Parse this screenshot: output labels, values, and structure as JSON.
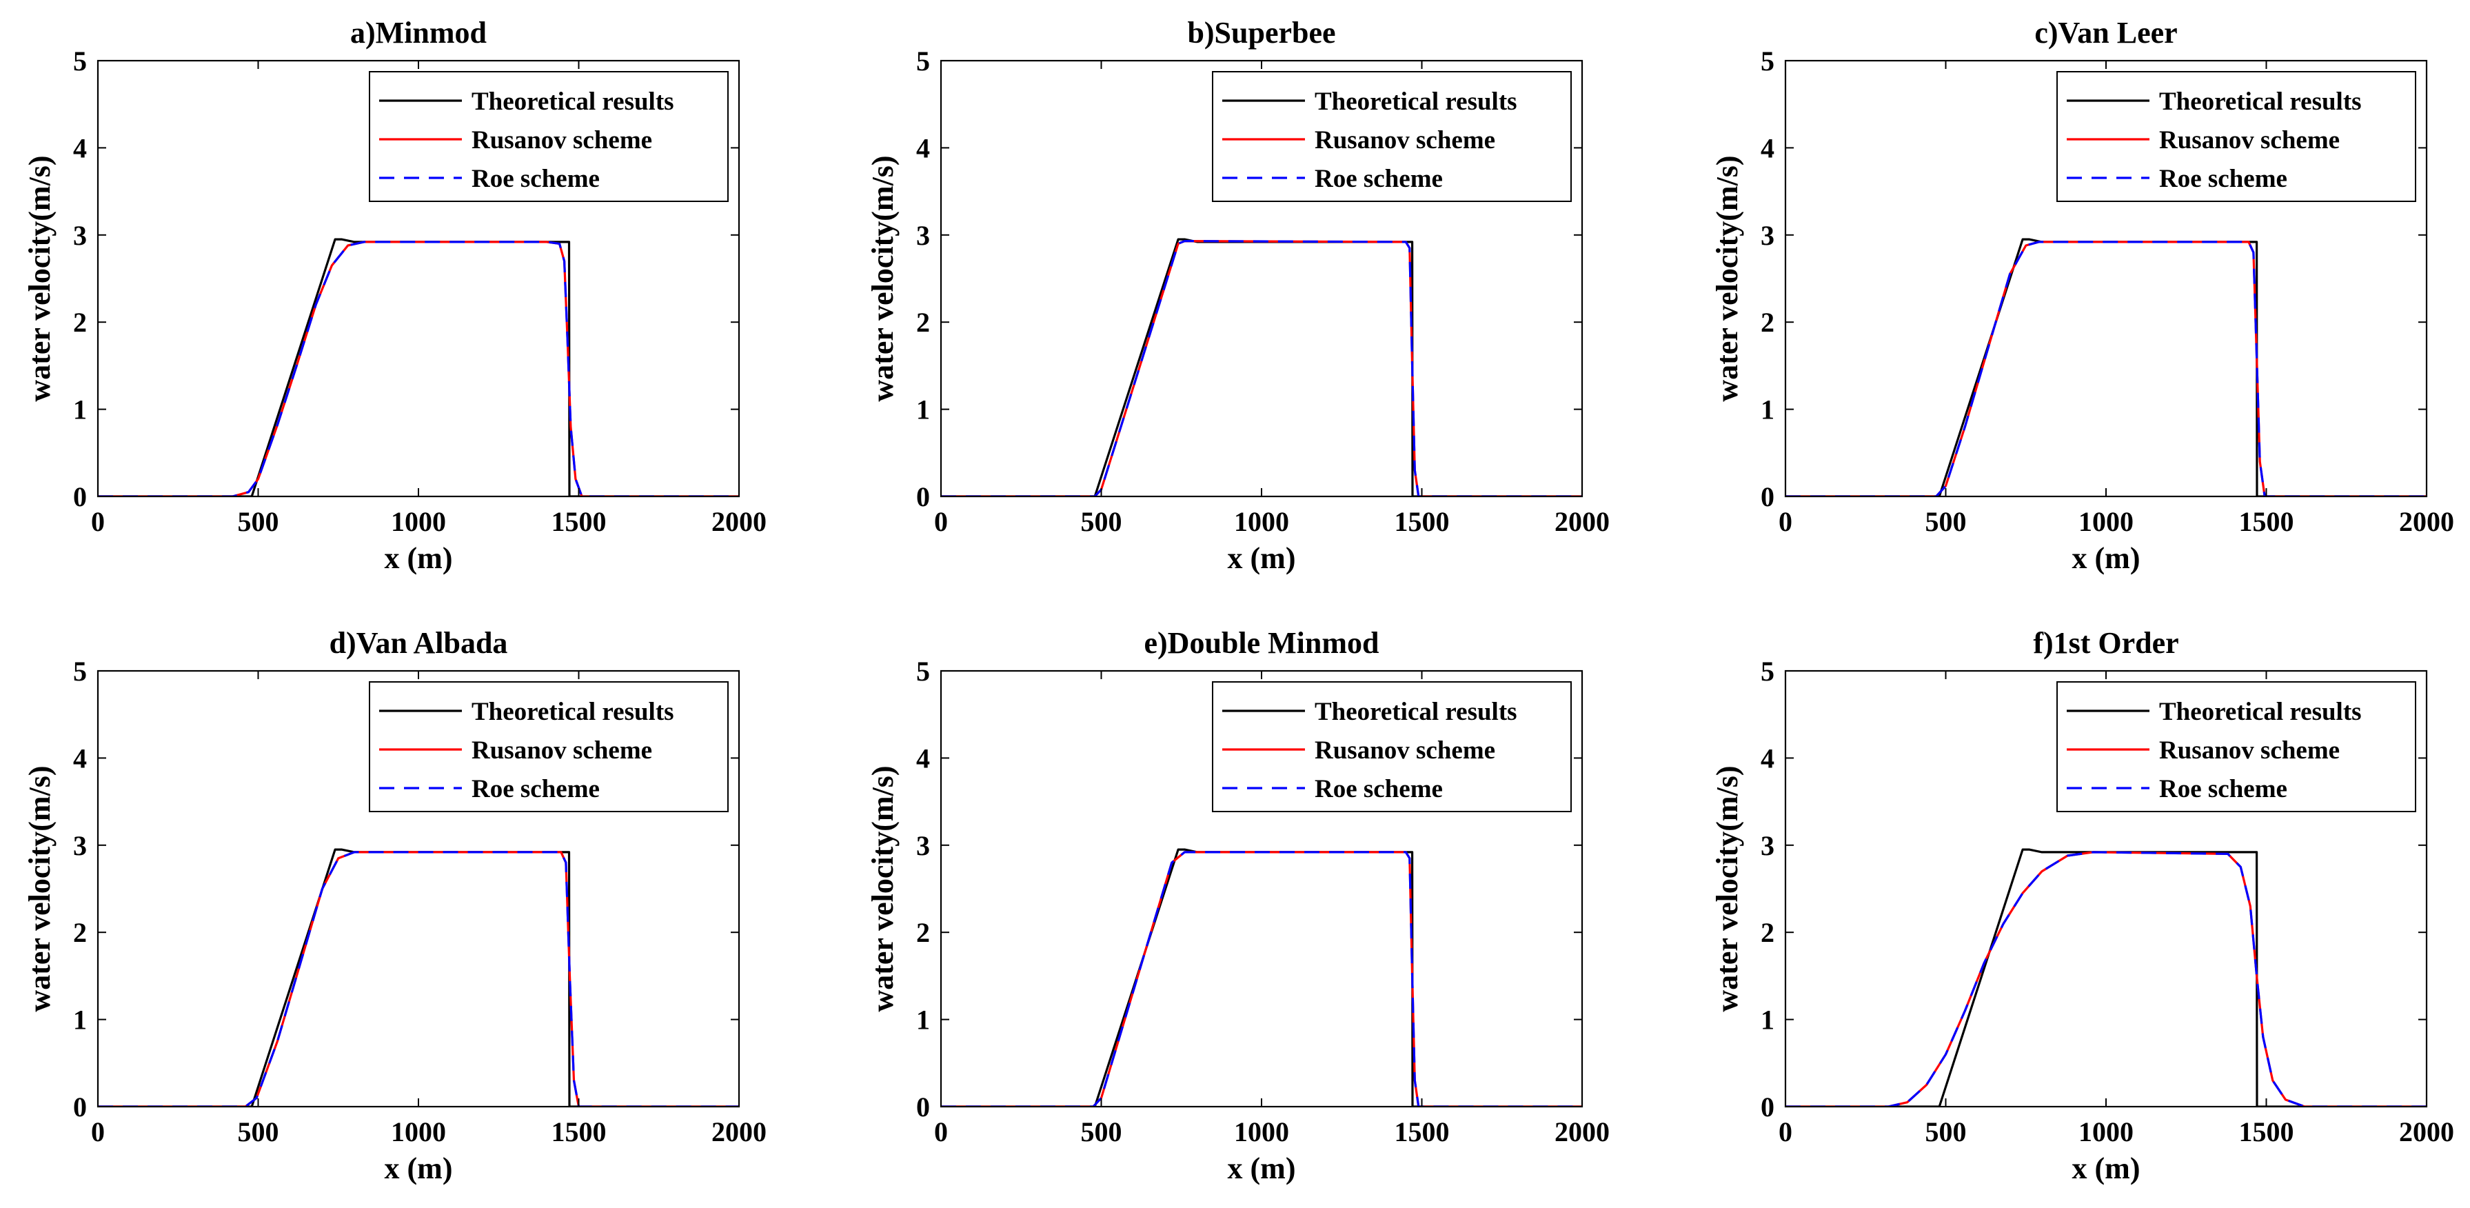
{
  "figure": {
    "panel_count": 6,
    "rows": 2,
    "cols": 3
  },
  "chart_data": [
    {
      "type": "line",
      "title": "a)Minmod",
      "xlabel": "x (m)",
      "ylabel": "water velocity(m/s)",
      "xlim": [
        0,
        2000
      ],
      "ylim": [
        0,
        5
      ],
      "xticks": [
        0,
        500,
        1000,
        1500,
        2000
      ],
      "yticks": [
        0,
        1,
        2,
        3,
        4,
        5
      ],
      "legend_position": "top-right",
      "series": [
        {
          "name": "Theoretical results",
          "color": "#000000",
          "dash": "solid",
          "x": [
            0,
            480,
            740,
            760,
            800,
            1470,
            1471,
            2000
          ],
          "y": [
            0,
            0,
            2.95,
            2.95,
            2.92,
            2.92,
            0,
            0
          ]
        },
        {
          "name": "Rusanov scheme",
          "color": "#ff0000",
          "dash": "solid",
          "x": [
            0,
            420,
            470,
            500,
            560,
            620,
            680,
            730,
            780,
            830,
            1400,
            1440,
            1455,
            1465,
            1475,
            1490,
            1510,
            2000
          ],
          "y": [
            0,
            0,
            0.05,
            0.2,
            0.82,
            1.5,
            2.2,
            2.65,
            2.88,
            2.92,
            2.92,
            2.9,
            2.7,
            1.8,
            0.8,
            0.2,
            0,
            0
          ]
        },
        {
          "name": "Roe scheme",
          "color": "#0000ff",
          "dash": "dashed",
          "x": [
            0,
            420,
            470,
            500,
            560,
            620,
            680,
            730,
            780,
            830,
            1400,
            1440,
            1455,
            1465,
            1475,
            1490,
            1510,
            2000
          ],
          "y": [
            0,
            0,
            0.05,
            0.2,
            0.82,
            1.5,
            2.2,
            2.65,
            2.88,
            2.92,
            2.92,
            2.9,
            2.7,
            1.8,
            0.8,
            0.2,
            0,
            0
          ]
        }
      ]
    },
    {
      "type": "line",
      "title": "b)Superbee",
      "xlabel": "x (m)",
      "ylabel": "water velocity(m/s)",
      "xlim": [
        0,
        2000
      ],
      "ylim": [
        0,
        5
      ],
      "xticks": [
        0,
        500,
        1000,
        1500,
        2000
      ],
      "yticks": [
        0,
        1,
        2,
        3,
        4,
        5
      ],
      "legend_position": "top-right",
      "series": [
        {
          "name": "Theoretical results",
          "color": "#000000",
          "dash": "solid",
          "x": [
            0,
            480,
            740,
            760,
            800,
            1470,
            1471,
            2000
          ],
          "y": [
            0,
            0,
            2.95,
            2.95,
            2.92,
            2.92,
            0,
            0
          ]
        },
        {
          "name": "Rusanov scheme",
          "color": "#ff0000",
          "dash": "solid",
          "x": [
            0,
            480,
            500,
            740,
            760,
            1450,
            1462,
            1470,
            1478,
            1490,
            2000
          ],
          "y": [
            0,
            0,
            0.08,
            2.9,
            2.93,
            2.92,
            2.85,
            1.5,
            0.3,
            0,
            0
          ]
        },
        {
          "name": "Roe scheme",
          "color": "#0000ff",
          "dash": "dashed",
          "x": [
            0,
            480,
            500,
            740,
            760,
            1450,
            1462,
            1470,
            1478,
            1490,
            2000
          ],
          "y": [
            0,
            0,
            0.08,
            2.9,
            2.93,
            2.92,
            2.85,
            1.5,
            0.3,
            0,
            0
          ]
        }
      ]
    },
    {
      "type": "line",
      "title": "c)Van Leer",
      "xlabel": "x (m)",
      "ylabel": "water velocity(m/s)",
      "xlim": [
        0,
        2000
      ],
      "ylim": [
        0,
        5
      ],
      "xticks": [
        0,
        500,
        1000,
        1500,
        2000
      ],
      "yticks": [
        0,
        1,
        2,
        3,
        4,
        5
      ],
      "legend_position": "top-right",
      "series": [
        {
          "name": "Theoretical results",
          "color": "#000000",
          "dash": "solid",
          "x": [
            0,
            480,
            740,
            760,
            800,
            1470,
            1471,
            2000
          ],
          "y": [
            0,
            0,
            2.95,
            2.95,
            2.92,
            2.92,
            0,
            0
          ]
        },
        {
          "name": "Rusanov scheme",
          "color": "#ff0000",
          "dash": "solid",
          "x": [
            0,
            470,
            500,
            560,
            700,
            750,
            790,
            1445,
            1460,
            1470,
            1480,
            1495,
            2000
          ],
          "y": [
            0,
            0,
            0.12,
            0.8,
            2.55,
            2.88,
            2.92,
            2.92,
            2.8,
            1.6,
            0.4,
            0,
            0
          ]
        },
        {
          "name": "Roe scheme",
          "color": "#0000ff",
          "dash": "dashed",
          "x": [
            0,
            470,
            500,
            560,
            700,
            750,
            790,
            1445,
            1460,
            1470,
            1480,
            1495,
            2000
          ],
          "y": [
            0,
            0,
            0.12,
            0.8,
            2.55,
            2.88,
            2.92,
            2.92,
            2.8,
            1.6,
            0.4,
            0,
            0
          ]
        }
      ]
    },
    {
      "type": "line",
      "title": "d)Van Albada",
      "xlabel": "x (m)",
      "ylabel": "water velocity(m/s)",
      "xlim": [
        0,
        2000
      ],
      "ylim": [
        0,
        5
      ],
      "xticks": [
        0,
        500,
        1000,
        1500,
        2000
      ],
      "yticks": [
        0,
        1,
        2,
        3,
        4,
        5
      ],
      "legend_position": "top-right",
      "series": [
        {
          "name": "Theoretical results",
          "color": "#000000",
          "dash": "solid",
          "x": [
            0,
            480,
            740,
            760,
            800,
            1470,
            1471,
            2000
          ],
          "y": [
            0,
            0,
            2.95,
            2.95,
            2.92,
            2.92,
            0,
            0
          ]
        },
        {
          "name": "Rusanov scheme",
          "color": "#ff0000",
          "dash": "solid",
          "x": [
            0,
            460,
            495,
            560,
            700,
            750,
            800,
            1445,
            1460,
            1472,
            1485,
            1500,
            2000
          ],
          "y": [
            0,
            0,
            0.1,
            0.75,
            2.5,
            2.85,
            2.92,
            2.92,
            2.8,
            1.5,
            0.3,
            0,
            0
          ]
        },
        {
          "name": "Roe scheme",
          "color": "#0000ff",
          "dash": "dashed",
          "x": [
            0,
            460,
            495,
            560,
            700,
            750,
            800,
            1445,
            1460,
            1472,
            1485,
            1500,
            2000
          ],
          "y": [
            0,
            0,
            0.1,
            0.75,
            2.5,
            2.85,
            2.92,
            2.92,
            2.8,
            1.5,
            0.3,
            0,
            0
          ]
        }
      ]
    },
    {
      "type": "line",
      "title": "e)Double Minmod",
      "xlabel": "x (m)",
      "ylabel": "water velocity(m/s)",
      "xlim": [
        0,
        2000
      ],
      "ylim": [
        0,
        5
      ],
      "xticks": [
        0,
        500,
        1000,
        1500,
        2000
      ],
      "yticks": [
        0,
        1,
        2,
        3,
        4,
        5
      ],
      "legend_position": "top-right",
      "series": [
        {
          "name": "Theoretical results",
          "color": "#000000",
          "dash": "solid",
          "x": [
            0,
            480,
            740,
            760,
            800,
            1470,
            1471,
            2000
          ],
          "y": [
            0,
            0,
            2.95,
            2.95,
            2.92,
            2.92,
            0,
            0
          ]
        },
        {
          "name": "Rusanov scheme",
          "color": "#ff0000",
          "dash": "solid",
          "x": [
            0,
            475,
            500,
            720,
            760,
            1450,
            1462,
            1470,
            1478,
            1490,
            2000
          ],
          "y": [
            0,
            0,
            0.1,
            2.8,
            2.92,
            2.92,
            2.85,
            1.5,
            0.3,
            0,
            0
          ]
        },
        {
          "name": "Roe scheme",
          "color": "#0000ff",
          "dash": "dashed",
          "x": [
            0,
            475,
            500,
            720,
            760,
            1450,
            1462,
            1470,
            1478,
            1490,
            2000
          ],
          "y": [
            0,
            0,
            0.1,
            2.8,
            2.92,
            2.92,
            2.85,
            1.5,
            0.3,
            0,
            0
          ]
        }
      ]
    },
    {
      "type": "line",
      "title": "f)1st Order",
      "xlabel": "x (m)",
      "ylabel": "water velocity(m/s)",
      "xlim": [
        0,
        2000
      ],
      "ylim": [
        0,
        5
      ],
      "xticks": [
        0,
        500,
        1000,
        1500,
        2000
      ],
      "yticks": [
        0,
        1,
        2,
        3,
        4,
        5
      ],
      "legend_position": "top-right",
      "series": [
        {
          "name": "Theoretical results",
          "color": "#000000",
          "dash": "solid",
          "x": [
            0,
            480,
            740,
            760,
            800,
            1470,
            1471,
            2000
          ],
          "y": [
            0,
            0,
            2.95,
            2.95,
            2.92,
            2.92,
            0,
            0
          ]
        },
        {
          "name": "Rusanov scheme",
          "color": "#ff0000",
          "dash": "solid",
          "x": [
            0,
            320,
            380,
            440,
            500,
            560,
            620,
            680,
            740,
            800,
            880,
            960,
            1380,
            1420,
            1450,
            1470,
            1490,
            1520,
            1560,
            1620,
            2000
          ],
          "y": [
            0,
            0,
            0.05,
            0.25,
            0.6,
            1.1,
            1.65,
            2.1,
            2.45,
            2.7,
            2.88,
            2.92,
            2.9,
            2.75,
            2.3,
            1.5,
            0.8,
            0.3,
            0.08,
            0,
            0
          ]
        },
        {
          "name": "Roe scheme",
          "color": "#0000ff",
          "dash": "dashed",
          "x": [
            0,
            320,
            380,
            440,
            500,
            560,
            620,
            680,
            740,
            800,
            880,
            960,
            1380,
            1420,
            1450,
            1470,
            1490,
            1520,
            1560,
            1620,
            2000
          ],
          "y": [
            0,
            0,
            0.05,
            0.25,
            0.6,
            1.1,
            1.65,
            2.1,
            2.45,
            2.7,
            2.88,
            2.92,
            2.9,
            2.75,
            2.3,
            1.5,
            0.8,
            0.3,
            0.08,
            0,
            0
          ]
        }
      ]
    }
  ]
}
